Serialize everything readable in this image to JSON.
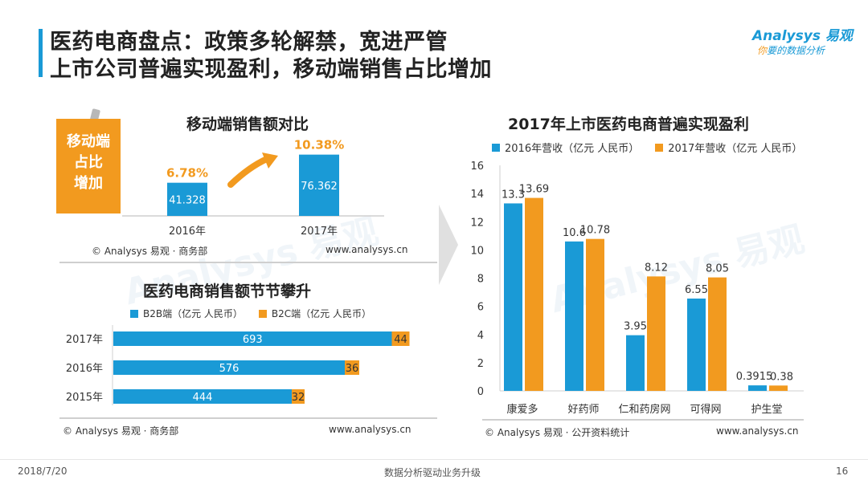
{
  "header": {
    "title_line1": "医药电商盘点：政策多轮解禁，宽进严管",
    "title_line2": "上市公司普遍实现盈利，移动端销售占比增加"
  },
  "logo": {
    "name": "Analysys 易观",
    "slogan_highlight": "你",
    "slogan_rest": "要的数据分析"
  },
  "colors": {
    "blue": "#1a9ad6",
    "orange": "#f29a1f"
  },
  "badge": {
    "line1": "移动端",
    "line2": "占比",
    "line3": "增加"
  },
  "watermark": {
    "text": "Analysys 易观",
    "sub": "你要的数据分析"
  },
  "footer": {
    "date": "2018/7/20",
    "center": "数据分析驱动业务升级",
    "page": "16"
  },
  "sources": {
    "left_top": "© Analysys 易观 · 商务部",
    "left_bottom": "© Analysys 易观 · 商务部",
    "right": "© Analysys 易观 · 公开资料统计",
    "url": "www.analysys.cn"
  },
  "chart_data": [
    {
      "id": "mobile",
      "type": "bar",
      "title": "移动端销售额对比",
      "categories": [
        "2016年",
        "2017年"
      ],
      "values": [
        41.328,
        76.362
      ],
      "value_labels": [
        "41.328",
        "76.362"
      ],
      "share_labels": [
        "6.78%",
        "10.38%"
      ],
      "ylim": [
        0,
        80
      ]
    },
    {
      "id": "sales",
      "type": "bar",
      "orientation": "horizontal-stacked",
      "title": "医药电商销售额节节攀升",
      "categories": [
        "2017年",
        "2016年",
        "2015年"
      ],
      "series": [
        {
          "name": "B2B端（亿元 人民币）",
          "values": [
            693,
            576,
            444
          ]
        },
        {
          "name": "B2C端（亿元 人民币）",
          "values": [
            44,
            36,
            32
          ]
        }
      ]
    },
    {
      "id": "profit",
      "type": "bar",
      "title": "2017年上市医药电商普遍实现盈利",
      "categories": [
        "康爱多",
        "好药师",
        "仁和药房网",
        "可得网",
        "护生堂"
      ],
      "series": [
        {
          "name": "2016年营收（亿元 人民币）",
          "values": [
            13.3,
            10.6,
            3.95,
            6.55,
            0.3915
          ],
          "labels": [
            "13.3",
            "10.6",
            "3.95",
            "6.55",
            "0.3915"
          ]
        },
        {
          "name": "2017年营收（亿元 人民币）",
          "values": [
            13.69,
            10.78,
            8.12,
            8.05,
            0.38
          ],
          "labels": [
            "13.69",
            "10.78",
            "8.12",
            "8.05",
            "0.38"
          ]
        }
      ],
      "yticks": [
        "16",
        "14",
        "12",
        "10",
        "8",
        "6",
        "4",
        "2",
        "0"
      ],
      "ylim": [
        0,
        16
      ]
    }
  ]
}
